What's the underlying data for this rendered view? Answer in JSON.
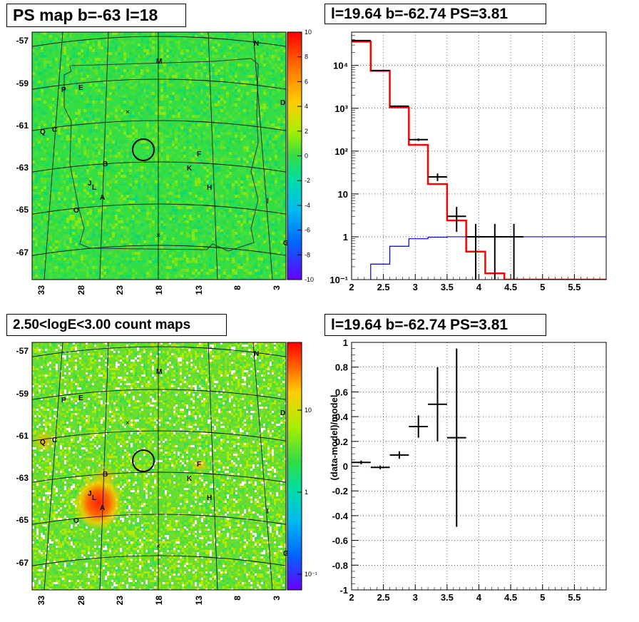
{
  "panels": {
    "tl_title": "PS map b=-63 l=18",
    "tr_title": "l=19.64 b=-62.74 PS=3.81",
    "bl_title": "2.50<logE<3.00 count maps",
    "br_title": "l=19.64 b=-62.74 PS=3.81"
  },
  "maps": {
    "lat_ticks": [
      "-57",
      "-59",
      "-61",
      "-63",
      "-65",
      "-67"
    ],
    "lon_ticks": [
      "33",
      "28",
      "23",
      "18",
      "13",
      "8",
      "3"
    ],
    "sources": [
      {
        "label": "N"
      },
      {
        "label": "M"
      },
      {
        "label": "P"
      },
      {
        "label": "E"
      },
      {
        "label": "D"
      },
      {
        "label": "Q"
      },
      {
        "label": "C"
      },
      {
        "label": "F"
      },
      {
        "label": "B"
      },
      {
        "label": "K"
      },
      {
        "label": "J"
      },
      {
        "label": "L"
      },
      {
        "label": "H"
      },
      {
        "label": "A"
      },
      {
        "label": "I"
      },
      {
        "label": "O"
      },
      {
        "label": "G"
      }
    ],
    "colors": {
      "background": "#33dd44",
      "grid": "#000000"
    }
  },
  "colorbars": {
    "top_ticks": [
      "10",
      "8",
      "6",
      "4",
      "2",
      "0",
      "-2",
      "-4",
      "-6",
      "-8",
      "-10"
    ],
    "bottom_ticks": [
      "10",
      "1",
      "10⁻¹"
    ]
  },
  "chart_data": [
    {
      "type": "line",
      "title": "l=19.64 b=-62.74 PS=3.81",
      "xlim": [
        2,
        6
      ],
      "ylim": [
        0.1,
        60000
      ],
      "yscale": "log",
      "x_ticks": [
        "2",
        "2.5",
        "3",
        "3.5",
        "4",
        "4.5",
        "5",
        "5.5"
      ],
      "y_ticks": [
        "10⁻¹",
        "1",
        "10",
        "10²",
        "10³",
        "10⁴"
      ],
      "grid": true,
      "series": [
        {
          "kind": "step",
          "color": "#ff0000",
          "edges": [
            2,
            2.3,
            2.6,
            2.9,
            3.2,
            3.5,
            3.8,
            4.1,
            4.4,
            4.7,
            5.0,
            5.3,
            5.6,
            5.9,
            6.0
          ],
          "values": [
            36000,
            7500,
            1050,
            140,
            17,
            2.4,
            0.45,
            0.14,
            0.1,
            0.1,
            0.1,
            0.1,
            0.1,
            0.1
          ]
        },
        {
          "kind": "step",
          "color": "#0000cc",
          "edges": [
            2.3,
            2.6,
            2.9,
            3.2,
            3.5,
            3.8,
            4.1,
            4.4,
            4.7,
            5.0,
            5.3,
            5.6,
            5.9,
            6.0
          ],
          "values": [
            0.23,
            0.6,
            0.9,
            0.98,
            1.0,
            1.0,
            1.0,
            1.0,
            1.0,
            1.0,
            1.0,
            1.0,
            1.0
          ]
        },
        {
          "kind": "errorbar",
          "color": "#000000",
          "points": [
            {
              "x": 2.15,
              "xerr": 0.15,
              "y": 38000,
              "ylo": 37800,
              "yhi": 38200
            },
            {
              "x": 2.45,
              "xerr": 0.15,
              "y": 7600,
              "ylo": 7500,
              "yhi": 7700
            },
            {
              "x": 2.75,
              "xerr": 0.15,
              "y": 1120,
              "ylo": 1090,
              "yhi": 1150
            },
            {
              "x": 3.05,
              "xerr": 0.15,
              "y": 185,
              "ylo": 172,
              "yhi": 198
            },
            {
              "x": 3.35,
              "xerr": 0.15,
              "y": 25,
              "ylo": 20,
              "yhi": 30
            },
            {
              "x": 3.65,
              "xerr": 0.15,
              "y": 3,
              "ylo": 1.3,
              "yhi": 5
            },
            {
              "x": 3.95,
              "xerr": 0.15,
              "y": 1,
              "ylo": 0.1,
              "yhi": 2
            },
            {
              "x": 4.25,
              "xerr": 0.15,
              "y": 1,
              "ylo": 0.1,
              "yhi": 2
            },
            {
              "x": 4.55,
              "xerr": 0.15,
              "y": 1,
              "ylo": 0.1,
              "yhi": 2
            }
          ]
        }
      ]
    },
    {
      "type": "scatter",
      "title": "l=19.64 b=-62.74 PS=3.81",
      "ylabel": "(data-model)/model",
      "xlim": [
        2,
        6
      ],
      "ylim": [
        -1,
        1
      ],
      "x_ticks": [
        "2",
        "2.5",
        "3",
        "3.5",
        "4",
        "4.5",
        "5",
        "5.5"
      ],
      "y_ticks": [
        "1",
        "0.8",
        "0.6",
        "0.4",
        "0.2",
        "0",
        "-0.2",
        "-0.4",
        "-0.6",
        "-0.8",
        "-1"
      ],
      "grid": true,
      "points": [
        {
          "x": 2.15,
          "xerr": 0.15,
          "y": 0.03,
          "yerr": 0.015
        },
        {
          "x": 2.45,
          "xerr": 0.15,
          "y": -0.01,
          "yerr": 0.015
        },
        {
          "x": 2.75,
          "xerr": 0.15,
          "y": 0.09,
          "yerr": 0.03
        },
        {
          "x": 3.05,
          "xerr": 0.15,
          "y": 0.32,
          "yerr": 0.09
        },
        {
          "x": 3.35,
          "xerr": 0.15,
          "y": 0.5,
          "yerr": 0.3
        },
        {
          "x": 3.65,
          "xerr": 0.15,
          "y": 0.23,
          "yerr": 0.72
        }
      ]
    }
  ]
}
